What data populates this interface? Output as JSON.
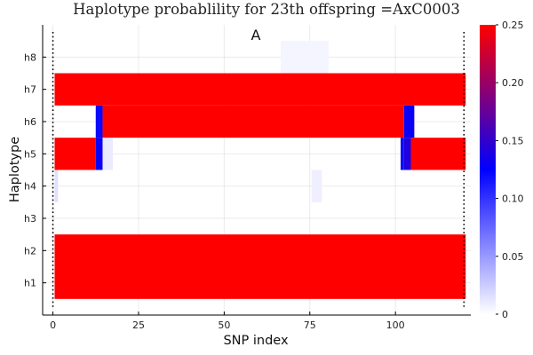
{
  "chart_data": {
    "type": "heatmap",
    "title": "Haplotype probablility for 23th offspring =AxC0003",
    "panel_label": "A",
    "xlabel": "SNP index",
    "ylabel": "Haplotype",
    "xlim": [
      -3,
      122
    ],
    "x_ticks": [
      0,
      25,
      50,
      75,
      100
    ],
    "y_categories": [
      "h1",
      "h2",
      "h3",
      "h4",
      "h5",
      "h6",
      "h7",
      "h8"
    ],
    "snp_count": 120,
    "vertical_markers": [
      0,
      120
    ],
    "colorbar": {
      "min": 0,
      "max": 0.25,
      "ticks": [
        0,
        0.05,
        0.1,
        0.15,
        0.2,
        0.25
      ],
      "tick_labels": [
        "0",
        "0.05",
        "0.10",
        "0.15",
        "0.20",
        "0.25"
      ],
      "stops": [
        {
          "value": 0,
          "color": "#ffffff"
        },
        {
          "value": 0.125,
          "color": "#0000ff"
        },
        {
          "value": 0.25,
          "color": "#ff0000"
        }
      ]
    },
    "segments": [
      {
        "haplotype": "h1",
        "start": 0,
        "end": 120,
        "value": 0.25
      },
      {
        "haplotype": "h2",
        "start": 0,
        "end": 120,
        "value": 0.25
      },
      {
        "haplotype": "h5",
        "start": 0,
        "end": 12,
        "value": 0.25
      },
      {
        "haplotype": "h5",
        "start": 12,
        "end": 14,
        "value": 0.13
      },
      {
        "haplotype": "h5",
        "start": 14,
        "end": 17,
        "value": 0.01
      },
      {
        "haplotype": "h5",
        "start": 101,
        "end": 102,
        "value": 0.12
      },
      {
        "haplotype": "h5",
        "start": 102,
        "end": 104,
        "value": 0.14
      },
      {
        "haplotype": "h5",
        "start": 104,
        "end": 120,
        "value": 0.25
      },
      {
        "haplotype": "h6",
        "start": 12,
        "end": 14,
        "value": 0.12
      },
      {
        "haplotype": "h6",
        "start": 14,
        "end": 102,
        "value": 0.25
      },
      {
        "haplotype": "h6",
        "start": 102,
        "end": 105,
        "value": 0.13
      },
      {
        "haplotype": "h7",
        "start": 0,
        "end": 120,
        "value": 0.25
      },
      {
        "haplotype": "h4",
        "start": 0,
        "end": 1,
        "value": 0.015
      },
      {
        "haplotype": "h4",
        "start": 75,
        "end": 78,
        "value": 0.008
      },
      {
        "haplotype": "h8",
        "start": 66,
        "end": 80,
        "value": 0.005
      }
    ]
  }
}
